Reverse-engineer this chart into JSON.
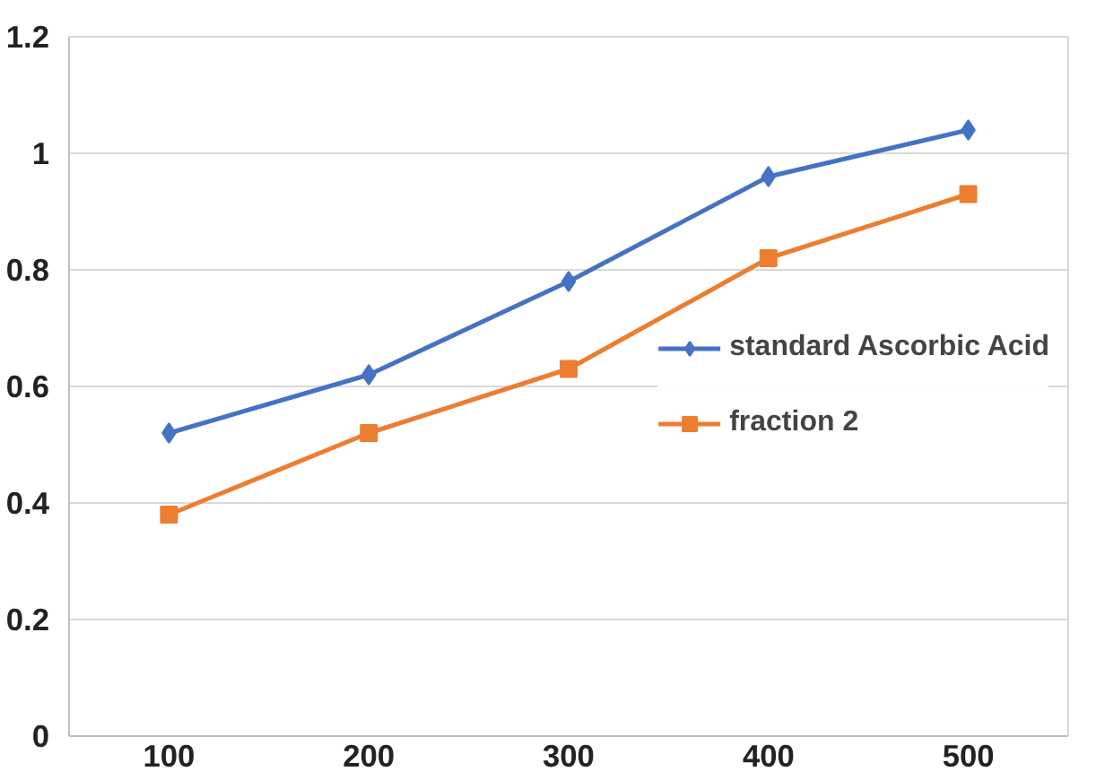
{
  "chart_data": {
    "type": "line",
    "categories": [
      "100",
      "200",
      "300",
      "400",
      "500"
    ],
    "series": [
      {
        "name": "standard Ascorbic Acid",
        "color": "#4472c4",
        "marker": "diamond",
        "values": [
          0.52,
          0.62,
          0.78,
          0.96,
          1.04
        ]
      },
      {
        "name": "fraction 2",
        "color": "#ed7d31",
        "marker": "square",
        "values": [
          0.38,
          0.52,
          0.63,
          0.82,
          0.93
        ]
      }
    ],
    "ylim": [
      0,
      1.2
    ],
    "yticks": [
      0,
      0.2,
      0.4,
      0.6,
      0.8,
      1,
      1.2
    ],
    "grid": "y",
    "legend": "right",
    "line_style": "solid"
  }
}
